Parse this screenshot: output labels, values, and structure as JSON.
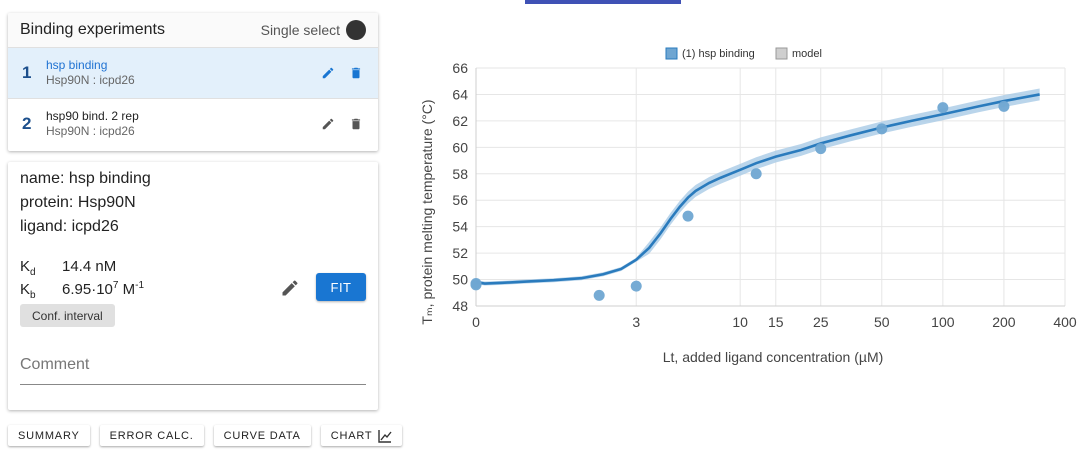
{
  "experiments_panel": {
    "title": "Binding experiments",
    "mode_label": "Single select",
    "items": [
      {
        "num": "1",
        "name": "hsp binding",
        "sub": "Hsp90N : icpd26",
        "selected": true
      },
      {
        "num": "2",
        "name": "hsp90 bind. 2 rep",
        "sub": "Hsp90N : icpd26",
        "selected": false
      }
    ]
  },
  "details": {
    "name_line": "name: hsp binding",
    "protein_line": "protein: Hsp90N",
    "ligand_line": "ligand: icpd26",
    "kd_symbol": "K",
    "kd_sub": "d",
    "kd_value": "14.4 nM",
    "kb_symbol": "K",
    "kb_sub": "b",
    "kb_value": "6.95·10",
    "kb_exp": "7",
    "kb_unit": " M",
    "kb_unit_exp": "-1",
    "conf_interval_label": "Conf. interval",
    "fit_label": "FIT",
    "comment_placeholder": "Comment"
  },
  "bottom_buttons": {
    "summary": "SUMMARY",
    "error_calc": "ERROR CALC.",
    "curve_data": "CURVE DATA",
    "chart": "CHART"
  },
  "colors": {
    "accent": "#1976d2",
    "series": "#2a7bbd",
    "points": "#6fa6d2",
    "band": "#a9cbe6",
    "tab_indicator": "#3f51b5"
  },
  "chart_data": {
    "type": "scatter",
    "legend": [
      "(1) hsp binding",
      "model"
    ],
    "xlabel": "Lt, added ligand concentration (µM)",
    "ylabel": "Tₘ, protein melting temperature (°C)",
    "x_ticks": [
      "0",
      "3",
      "10",
      "15",
      "25",
      "50",
      "100",
      "200",
      "400"
    ],
    "y_ticks": [
      "48",
      "50",
      "52",
      "54",
      "56",
      "58",
      "60",
      "62",
      "64",
      "66"
    ],
    "ylim": [
      48,
      66
    ],
    "series": [
      {
        "name": "(1) hsp binding",
        "x": [
          0,
          0,
          1.9,
          3,
          5.5,
          12,
          25,
          50,
          100,
          200
        ],
        "y": [
          49.7,
          49.6,
          48.8,
          49.5,
          54.8,
          58.0,
          59.9,
          61.4,
          63.0,
          63.1
        ]
      }
    ],
    "model": {
      "name": "model",
      "x": [
        0,
        0.1,
        0.3,
        0.6,
        1,
        1.5,
        2,
        2.5,
        3,
        3.5,
        4,
        4.5,
        5,
        5.5,
        6,
        7,
        8,
        10,
        12,
        15,
        20,
        25,
        35,
        50,
        70,
        100,
        150,
        200,
        300
      ],
      "y": [
        49.8,
        49.7,
        49.75,
        49.85,
        49.95,
        50.1,
        50.4,
        50.8,
        51.5,
        52.4,
        53.5,
        54.6,
        55.5,
        56.2,
        56.7,
        57.3,
        57.7,
        58.3,
        58.8,
        59.3,
        59.8,
        60.3,
        60.9,
        61.5,
        62.0,
        62.5,
        63.1,
        63.5,
        64.0
      ]
    }
  }
}
